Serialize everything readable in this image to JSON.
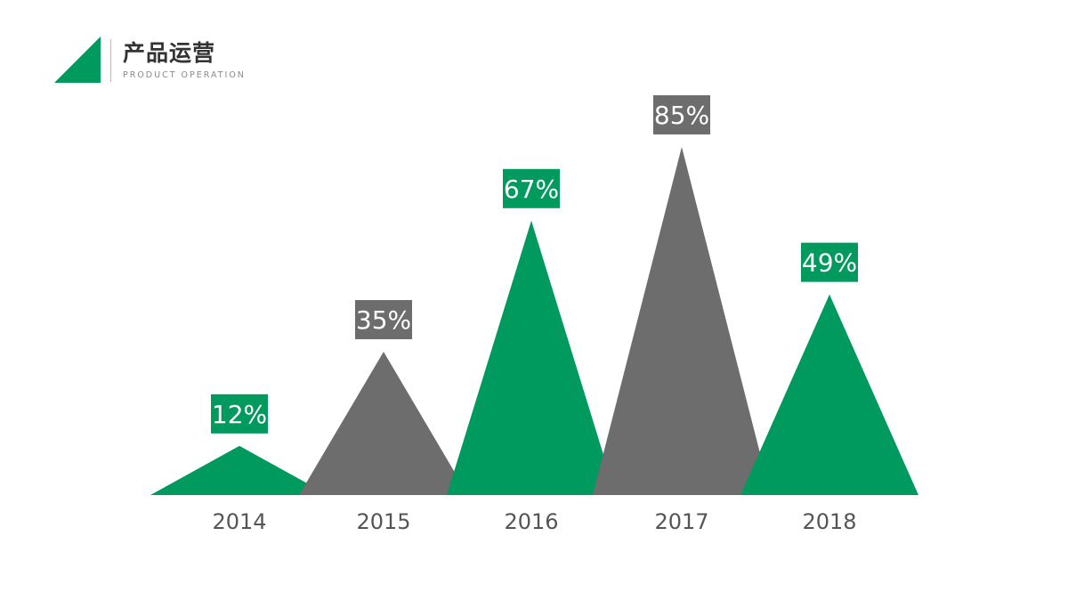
{
  "header": {
    "title": "产品运营",
    "subtitle": "PRODUCT OPERATION",
    "accent_color": "#009a5e"
  },
  "chart_data": {
    "type": "bar",
    "style": "triangle-columns",
    "categories": [
      "2014",
      "2015",
      "2016",
      "2017",
      "2018"
    ],
    "values": [
      12,
      35,
      67,
      85,
      49
    ],
    "data_labels": [
      "12%",
      "35%",
      "67%",
      "85%",
      "49%"
    ],
    "unit": "%",
    "ylim": [
      0,
      100
    ],
    "grid": false,
    "legend": "none",
    "colors": [
      "#009a5e",
      "#6d6d6d",
      "#009a5e",
      "#6d6d6d",
      "#009a5e"
    ]
  }
}
